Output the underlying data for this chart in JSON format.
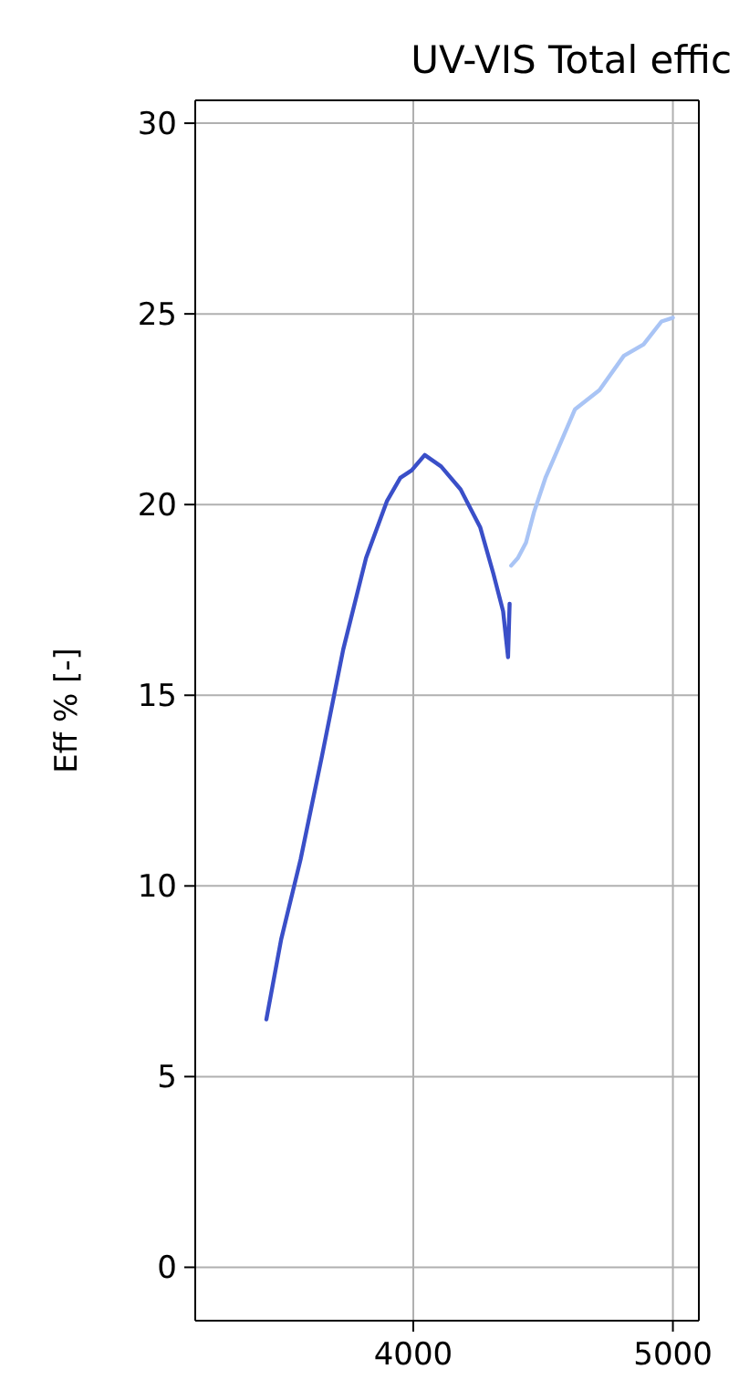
{
  "chart_data": {
    "type": "line",
    "title": "UV-VIS Total effic",
    "ylabel": "Eff % [-]",
    "xlim": [
      3160,
      5100
    ],
    "ylim": [
      -1.4,
      30.6
    ],
    "xticks": [
      4000,
      5000
    ],
    "yticks": [
      0,
      5,
      10,
      15,
      20,
      25,
      30
    ],
    "grid": true,
    "series": [
      {
        "color": "#3a4fc8",
        "x": [
          3434,
          3491,
          3566,
          3648,
          3730,
          3818,
          3899,
          3950,
          3994,
          4044,
          4107,
          4182,
          4258,
          4308,
          4346,
          4365,
          4371
        ],
        "values": [
          6.5,
          8.6,
          10.7,
          13.4,
          16.2,
          18.6,
          20.1,
          20.7,
          20.9,
          21.3,
          21.0,
          20.4,
          19.4,
          18.2,
          17.2,
          16.0,
          17.4
        ]
      },
      {
        "color": "#a9c4f5",
        "x": [
          4377,
          4403,
          4434,
          4465,
          4509,
          4560,
          4623,
          4717,
          4811,
          4887,
          4956,
          5000
        ],
        "values": [
          18.4,
          18.6,
          19.0,
          19.8,
          20.7,
          21.5,
          22.5,
          23.0,
          23.9,
          24.2,
          24.8,
          24.9
        ]
      }
    ]
  }
}
